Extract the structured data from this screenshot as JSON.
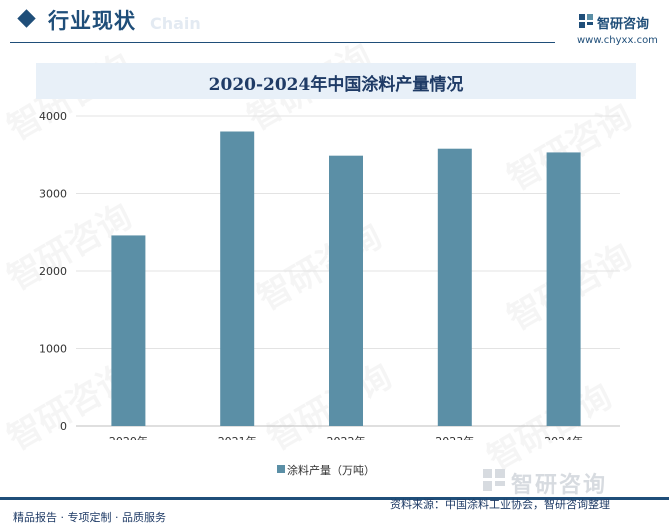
{
  "header": {
    "section_title": "行业现状",
    "section_subtitle": "Chain",
    "brand_name": "智研咨询",
    "brand_url": "www.chyxx.com"
  },
  "chart_data": {
    "type": "bar",
    "title": "2020-2024年中国涂料产量情况",
    "categories": [
      "2020年",
      "2021年",
      "2022年",
      "2023年",
      "2024年"
    ],
    "series": [
      {
        "name": "涂料产量（万吨）",
        "values": [
          2459,
          3800,
          3488,
          3578,
          3530
        ]
      }
    ],
    "ylim": [
      0,
      4000
    ],
    "yticks": [
      0,
      1000,
      2000,
      3000,
      4000
    ],
    "xlabel": "",
    "ylabel": "",
    "grid": true,
    "legend": "bottom-center",
    "bar_color": "#5b8fa6"
  },
  "watermark": {
    "text": "智研咨询"
  },
  "footer": {
    "left": "精品报告 · 专项定制 · 品质服务",
    "right": "资料来源：中国涂料工业协会，智研咨询整理"
  }
}
